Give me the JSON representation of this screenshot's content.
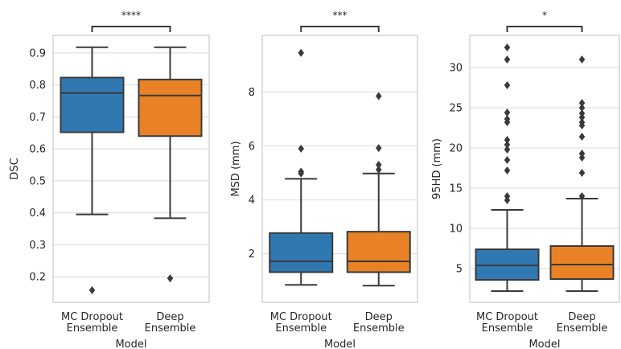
{
  "colors": {
    "mc_dropout": "#2f78b1",
    "deep_ensemble": "#e98226",
    "line": "#3a3a3a",
    "grid": "#d9d9d9",
    "frame": "#bfbfbf"
  },
  "chart_data": [
    {
      "type": "box",
      "xlabel": "Model",
      "ylabel": "DSC",
      "categories": [
        "MC Dropout\nEnsemble",
        "Deep\nEnsemble"
      ],
      "ylim": [
        0.12,
        0.955
      ],
      "yticks": [
        0.2,
        0.3,
        0.4,
        0.5,
        0.6,
        0.7,
        0.8,
        0.9
      ],
      "ytick_labels": [
        "0.2",
        "0.3",
        "0.4",
        "0.5",
        "0.6",
        "0.7",
        "0.8",
        "0.9"
      ],
      "grid": true,
      "significance": "****",
      "series": [
        {
          "min": 0.395,
          "q1": 0.652,
          "median": 0.775,
          "q3": 0.823,
          "max": 0.918,
          "outliers": [
            0.158
          ]
        },
        {
          "min": 0.383,
          "q1": 0.64,
          "median": 0.767,
          "q3": 0.817,
          "max": 0.918,
          "outliers": [
            0.195
          ]
        }
      ]
    },
    {
      "type": "box",
      "xlabel": "Model",
      "ylabel": "MSD (mm)",
      "categories": [
        "MC Dropout\nEnsemble",
        "Deep\nEnsemble"
      ],
      "ylim": [
        0.2,
        10.1
      ],
      "yticks": [
        2,
        4,
        6,
        8
      ],
      "ytick_labels": [
        "2",
        "4",
        "6",
        "8"
      ],
      "grid": true,
      "significance": "***",
      "series": [
        {
          "min": 0.85,
          "q1": 1.32,
          "median": 1.72,
          "q3": 2.77,
          "max": 4.78,
          "outliers": [
            4.98,
            5.05,
            5.9,
            9.45
          ]
        },
        {
          "min": 0.82,
          "q1": 1.32,
          "median": 1.72,
          "q3": 2.82,
          "max": 4.98,
          "outliers": [
            5.12,
            5.3,
            5.92,
            7.85
          ]
        }
      ]
    },
    {
      "type": "box",
      "xlabel": "Model",
      "ylabel": "95HD (mm)",
      "categories": [
        "MC Dropout\nEnsemble",
        "Deep\nEnsemble"
      ],
      "ylim": [
        0.8,
        34.0
      ],
      "yticks": [
        5,
        10,
        15,
        20,
        25,
        30
      ],
      "ytick_labels": [
        "5",
        "10",
        "15",
        "20",
        "25",
        "30"
      ],
      "grid": true,
      "significance": "*",
      "series": [
        {
          "min": 2.2,
          "q1": 3.6,
          "median": 5.4,
          "q3": 7.4,
          "max": 12.3,
          "outliers": [
            13.5,
            14.0,
            17.2,
            18.5,
            19.8,
            20.4,
            21.0,
            23.2,
            23.6,
            24.4,
            27.8,
            31.0,
            32.5
          ]
        },
        {
          "min": 2.2,
          "q1": 3.7,
          "median": 5.5,
          "q3": 7.8,
          "max": 13.7,
          "outliers": [
            14.0,
            16.9,
            18.8,
            19.3,
            21.4,
            22.8,
            23.2,
            23.8,
            24.3,
            25.0,
            25.6,
            31.0
          ]
        }
      ]
    }
  ]
}
